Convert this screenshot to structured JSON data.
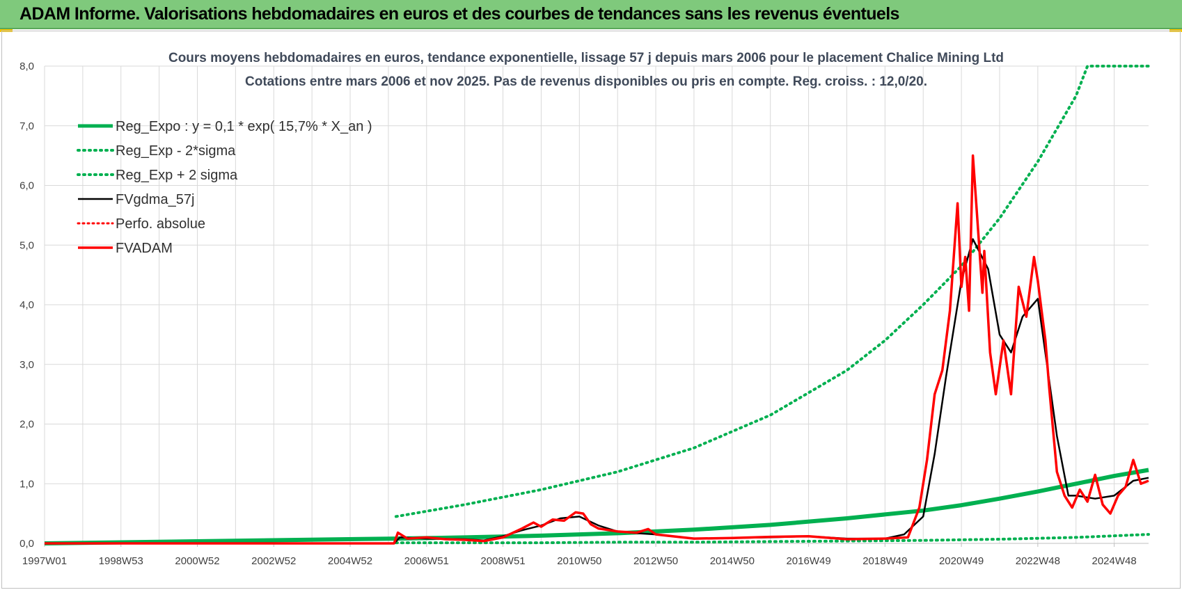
{
  "banner": {
    "title": "ADAM Informe. Valorisations hebdomadaires en euros et des courbes de tendances sans les revenus éventuels"
  },
  "colors": {
    "banner_bg": "#7fc97c",
    "green": "#00b050",
    "black": "#000000",
    "red": "#ff0000",
    "grid": "#d9d9d9"
  },
  "chart_data": {
    "type": "line",
    "title": "Cours moyens hebdomadaires en euros, tendance exponentielle, lissage 57 j depuis mars 2006 pour le placement Chalice Mining Ltd",
    "subtitle": "Cotations entre mars 2006 et nov 2025. Pas de revenus disponibles ou pris en compte. Reg. croiss. : 12,0/20.",
    "xlabel": "",
    "ylabel": "",
    "ylim": [
      0,
      8
    ],
    "xlim": [
      1997.0,
      2025.9
    ],
    "grid": true,
    "legend_position": "top-left",
    "y_ticks": [
      "0,0",
      "1,0",
      "2,0",
      "3,0",
      "4,0",
      "5,0",
      "6,0",
      "7,0",
      "8,0"
    ],
    "x_ticks": [
      {
        "label": "1997W01",
        "x": 1997.0
      },
      {
        "label": "1998W53",
        "x": 1999.0
      },
      {
        "label": "2000W52",
        "x": 2001.0
      },
      {
        "label": "2002W52",
        "x": 2003.0
      },
      {
        "label": "2004W52",
        "x": 2005.0
      },
      {
        "label": "2006W51",
        "x": 2007.0
      },
      {
        "label": "2008W51",
        "x": 2009.0
      },
      {
        "label": "2010W50",
        "x": 2011.0
      },
      {
        "label": "2012W50",
        "x": 2013.0
      },
      {
        "label": "2014W50",
        "x": 2015.0
      },
      {
        "label": "2016W49",
        "x": 2017.0
      },
      {
        "label": "2018W49",
        "x": 2019.0
      },
      {
        "label": "2020W49",
        "x": 2021.0
      },
      {
        "label": "2022W48",
        "x": 2023.0
      },
      {
        "label": "2024W48",
        "x": 2025.0
      }
    ],
    "series": [
      {
        "name": "Reg_Expo : y = 0,1 * exp( 15,7% *  X_an )",
        "style": "solid-green",
        "x": [
          1997.0,
          2006.2,
          2008,
          2010,
          2012,
          2014,
          2016,
          2018,
          2020,
          2021,
          2022,
          2023,
          2024,
          2025,
          2025.9
        ],
        "y": [
          0,
          0.08,
          0.1,
          0.13,
          0.17,
          0.23,
          0.31,
          0.42,
          0.55,
          0.64,
          0.75,
          0.87,
          1.0,
          1.13,
          1.23
        ]
      },
      {
        "name": "Reg_Exp - 2*sigma",
        "style": "dotted-green",
        "x": [
          2006.2,
          2008,
          2010,
          2012,
          2014,
          2016,
          2018,
          2020,
          2022,
          2024,
          2025.9
        ],
        "y": [
          0.01,
          0.01,
          0.01,
          0.02,
          0.02,
          0.03,
          0.04,
          0.05,
          0.07,
          0.1,
          0.15
        ]
      },
      {
        "name": "Reg_Exp + 2 sigma",
        "style": "dotted-green",
        "x": [
          2006.2,
          2008,
          2010,
          2012,
          2014,
          2016,
          2018,
          2019,
          2020,
          2021,
          2022,
          2023,
          2024,
          2024.3,
          2025.9
        ],
        "y": [
          0.45,
          0.65,
          0.9,
          1.2,
          1.6,
          2.15,
          2.9,
          3.4,
          4.0,
          4.65,
          5.45,
          6.4,
          7.5,
          8.0,
          8.0
        ]
      },
      {
        "name": "FVgdma_57j",
        "style": "solid-black",
        "x": [
          1997.0,
          2006.15,
          2006.3,
          2007,
          2008,
          2008.5,
          2009,
          2009.5,
          2010,
          2010.5,
          2011,
          2011.5,
          2012,
          2012.5,
          2013,
          2014,
          2015,
          2016,
          2017,
          2018,
          2019,
          2019.5,
          2020,
          2020.3,
          2020.6,
          2021,
          2021.3,
          2021.7,
          2022,
          2022.3,
          2022.6,
          2023,
          2023.5,
          2023.8,
          2024,
          2024.5,
          2025,
          2025.5,
          2025.9
        ],
        "y": [
          0,
          0,
          0.1,
          0.08,
          0.07,
          0.05,
          0.12,
          0.22,
          0.3,
          0.42,
          0.45,
          0.3,
          0.2,
          0.17,
          0.15,
          0.08,
          0.09,
          0.1,
          0.12,
          0.08,
          0.08,
          0.15,
          0.45,
          1.5,
          2.8,
          4.4,
          5.1,
          4.6,
          3.5,
          3.2,
          3.8,
          4.1,
          1.8,
          0.8,
          0.8,
          0.75,
          0.8,
          1.05,
          1.1
        ]
      },
      {
        "name": "Perfo. absolue",
        "style": "dotted-red",
        "x": [],
        "y": []
      },
      {
        "name": "FVADAM",
        "style": "solid-red",
        "x": [
          1997.0,
          2006.15,
          2006.25,
          2006.5,
          2007,
          2007.5,
          2008,
          2008.5,
          2009,
          2009.5,
          2009.8,
          2010,
          2010.3,
          2010.6,
          2010.9,
          2011.1,
          2011.3,
          2011.5,
          2012,
          2012.5,
          2012.8,
          2013,
          2014,
          2015,
          2016,
          2017,
          2018,
          2019,
          2019.6,
          2019.9,
          2020.1,
          2020.3,
          2020.5,
          2020.7,
          2020.9,
          2021.0,
          2021.1,
          2021.2,
          2021.3,
          2021.4,
          2021.55,
          2021.6,
          2021.75,
          2021.9,
          2022.1,
          2022.3,
          2022.5,
          2022.7,
          2022.9,
          2023.0,
          2023.1,
          2023.2,
          2023.3,
          2023.5,
          2023.7,
          2023.9,
          2024.1,
          2024.3,
          2024.5,
          2024.7,
          2024.9,
          2025.1,
          2025.3,
          2025.5,
          2025.7,
          2025.9
        ],
        "y": [
          0,
          0,
          0.18,
          0.08,
          0.1,
          0.07,
          0.06,
          0.04,
          0.1,
          0.25,
          0.35,
          0.28,
          0.4,
          0.38,
          0.52,
          0.5,
          0.32,
          0.25,
          0.2,
          0.18,
          0.24,
          0.15,
          0.08,
          0.09,
          0.11,
          0.12,
          0.07,
          0.08,
          0.1,
          0.6,
          1.4,
          2.5,
          2.9,
          3.9,
          5.7,
          4.3,
          4.8,
          3.9,
          6.5,
          5.6,
          4.2,
          4.9,
          3.2,
          2.5,
          3.4,
          2.5,
          4.3,
          3.8,
          4.8,
          4.4,
          3.9,
          3.4,
          2.6,
          1.2,
          0.8,
          0.6,
          0.9,
          0.7,
          1.15,
          0.65,
          0.5,
          0.8,
          0.95,
          1.4,
          1.0,
          1.05
        ]
      }
    ]
  }
}
